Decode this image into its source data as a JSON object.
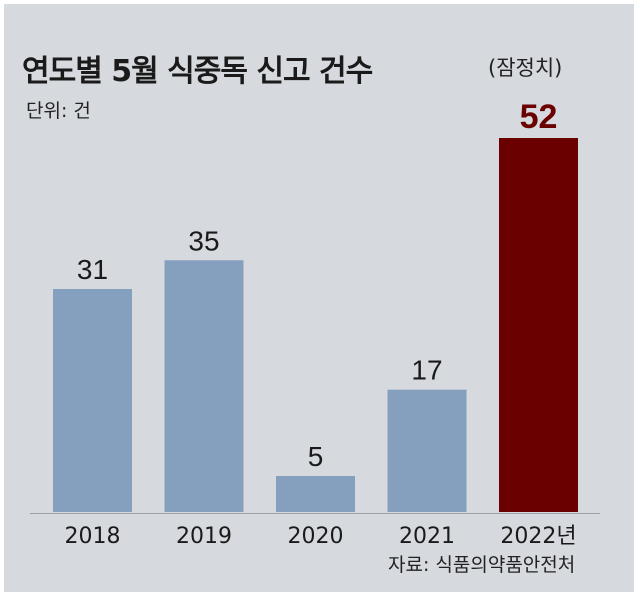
{
  "chart_data": {
    "type": "bar",
    "title": "연도별 5월 식중독 신고 건수",
    "subtitle": "(잠정치)",
    "unit_label": "단위: 건",
    "source": "자료: 식품의약품안전처",
    "categories": [
      "2018",
      "2019",
      "2020",
      "2021",
      "2022년"
    ],
    "values": [
      31,
      35,
      5,
      17,
      52
    ],
    "ylim": [
      0,
      52
    ],
    "grid": false,
    "colors": {
      "default_bar": "#859fbf",
      "highlight_bar": "#6b0000",
      "default_label": "#1a1a1a",
      "highlight_label": "#6b0000",
      "background": "#d6d9de"
    },
    "highlight_index": 4
  }
}
